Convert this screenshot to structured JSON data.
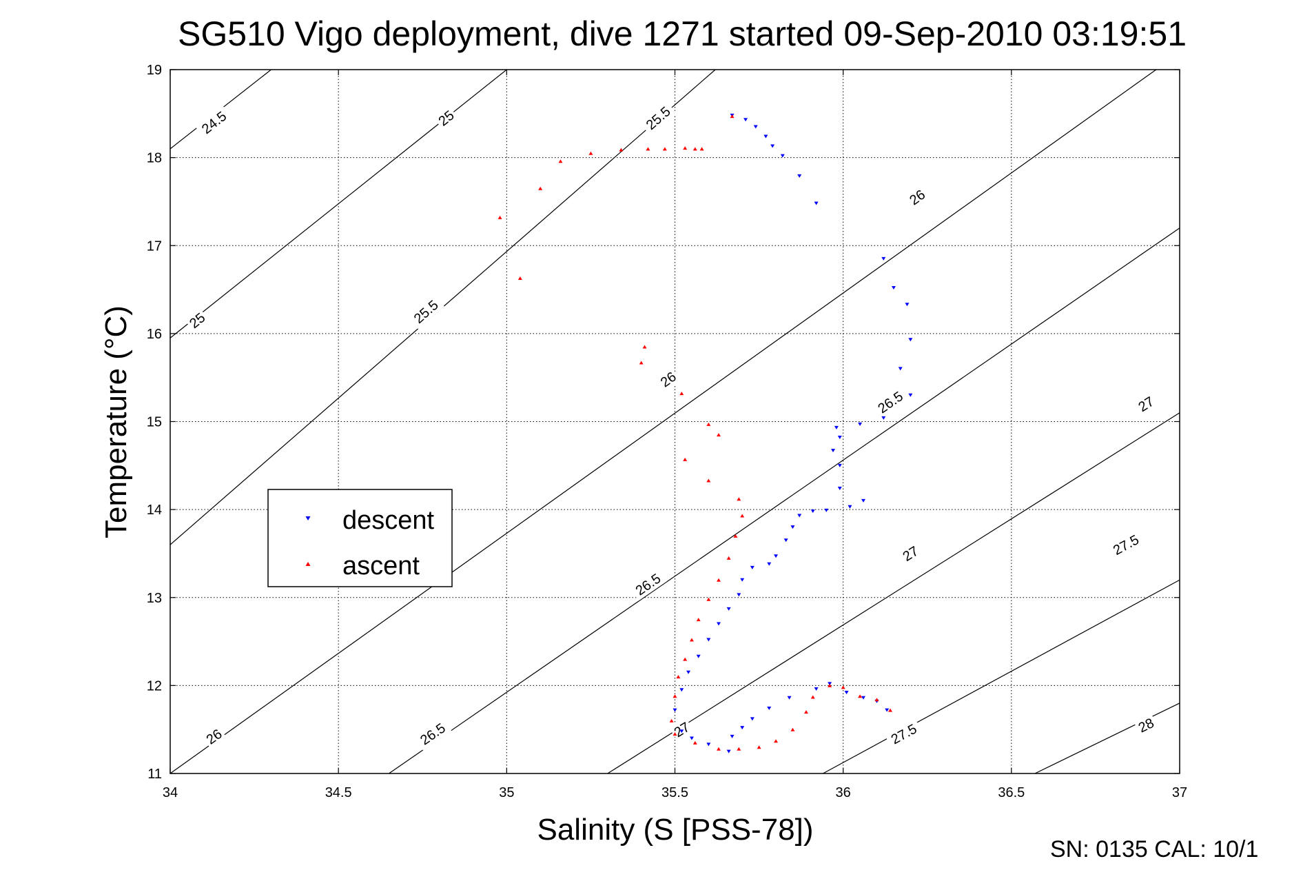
{
  "chart_data": {
    "type": "scatter",
    "title": "SG510 Vigo deployment, dive 1271 started 09-Sep-2010 03:19:51",
    "xlabel": "Salinity (S [PSS-78])",
    "ylabel": "Temperature (°C)",
    "xlim": [
      34,
      37
    ],
    "ylim": [
      11,
      19
    ],
    "xticks": [
      "34",
      "34.5",
      "35",
      "35.5",
      "36",
      "36.5",
      "37"
    ],
    "yticks": [
      "11",
      "12",
      "13",
      "14",
      "15",
      "16",
      "17",
      "18",
      "19"
    ],
    "grid": true,
    "legend_position": "left",
    "footer": "SN: 0135  CAL: 10/1",
    "colors": {
      "descent": "#0000ff",
      "ascent": "#ff0000",
      "contour": "#000000"
    },
    "density_contours": [
      {
        "label": "24.5",
        "points": [
          [
            34,
            18.1
          ],
          [
            34.3,
            19
          ]
        ],
        "label_at": [
          34.13,
          18.4
        ]
      },
      {
        "label": "25",
        "points": [
          [
            34,
            15.95
          ],
          [
            35,
            19
          ]
        ],
        "label_at": [
          34.08,
          16.15
        ]
      },
      {
        "label": "25",
        "points": [
          [
            34,
            15.95
          ],
          [
            35,
            19
          ]
        ],
        "label_at": [
          34.82,
          18.45
        ]
      },
      {
        "label": "25.5",
        "points": [
          [
            34,
            13.6
          ],
          [
            35.62,
            19
          ]
        ],
        "label_at": [
          34.76,
          16.25
        ]
      },
      {
        "label": "25.5",
        "points": [
          [
            34,
            13.6
          ],
          [
            35.62,
            19
          ]
        ],
        "label_at": [
          35.45,
          18.45
        ]
      },
      {
        "label": "26",
        "points": [
          [
            34,
            11
          ],
          [
            36.93,
            19
          ]
        ],
        "label_at": [
          34.13,
          11.42
        ]
      },
      {
        "label": "26",
        "points": [
          [
            34,
            11
          ],
          [
            36.93,
            19
          ]
        ],
        "label_at": [
          35.48,
          15.48
        ]
      },
      {
        "label": "26",
        "points": [
          [
            34,
            11
          ],
          [
            36.93,
            19
          ]
        ],
        "label_at": [
          36.22,
          17.55
        ]
      },
      {
        "label": "26.5",
        "points": [
          [
            34.65,
            11
          ],
          [
            37,
            17.2
          ]
        ],
        "label_at": [
          34.78,
          11.45
        ]
      },
      {
        "label": "26.5",
        "points": [
          [
            34.65,
            11
          ],
          [
            37,
            17.2
          ]
        ],
        "label_at": [
          35.42,
          13.15
        ]
      },
      {
        "label": "26.5",
        "points": [
          [
            34.65,
            11
          ],
          [
            37,
            17.2
          ]
        ],
        "label_at": [
          36.14,
          15.22
        ]
      },
      {
        "label": "27",
        "points": [
          [
            35.3,
            11
          ],
          [
            37,
            15.1
          ]
        ],
        "label_at": [
          35.52,
          11.5
        ]
      },
      {
        "label": "27",
        "points": [
          [
            35.3,
            11
          ],
          [
            37,
            15.1
          ]
        ],
        "label_at": [
          36.2,
          13.5
        ]
      },
      {
        "label": "27",
        "points": [
          [
            35.3,
            11
          ],
          [
            37,
            15.1
          ]
        ],
        "label_at": [
          36.9,
          15.2
        ]
      },
      {
        "label": "27.5",
        "points": [
          [
            35.94,
            11
          ],
          [
            37,
            13.2
          ]
        ],
        "label_at": [
          36.18,
          11.45
        ]
      },
      {
        "label": "27.5",
        "points": [
          [
            35.94,
            11
          ],
          [
            37,
            13.2
          ]
        ],
        "label_at": [
          36.84,
          13.6
        ]
      },
      {
        "label": "28",
        "points": [
          [
            36.57,
            11
          ],
          [
            37,
            11.8
          ]
        ],
        "label_at": [
          36.9,
          11.55
        ]
      }
    ],
    "series": [
      {
        "name": "descent",
        "marker": "triangle-down",
        "points": [
          [
            35.67,
            18.48
          ],
          [
            35.71,
            18.43
          ],
          [
            35.74,
            18.35
          ],
          [
            35.77,
            18.24
          ],
          [
            35.79,
            18.13
          ],
          [
            35.82,
            18.02
          ],
          [
            35.87,
            17.79
          ],
          [
            35.92,
            17.48
          ],
          [
            36.12,
            16.85
          ],
          [
            36.15,
            16.52
          ],
          [
            36.19,
            16.33
          ],
          [
            36.2,
            15.93
          ],
          [
            36.17,
            15.6
          ],
          [
            36.2,
            15.3
          ],
          [
            36.12,
            15.04
          ],
          [
            36.05,
            14.97
          ],
          [
            35.98,
            14.93
          ],
          [
            35.99,
            14.82
          ],
          [
            35.97,
            14.67
          ],
          [
            35.99,
            14.5
          ],
          [
            35.99,
            14.24
          ],
          [
            36.06,
            14.1
          ],
          [
            36.02,
            14.03
          ],
          [
            35.95,
            13.99
          ],
          [
            35.91,
            13.98
          ],
          [
            35.87,
            13.93
          ],
          [
            35.85,
            13.8
          ],
          [
            35.83,
            13.65
          ],
          [
            35.8,
            13.47
          ],
          [
            35.78,
            13.38
          ],
          [
            35.73,
            13.34
          ],
          [
            35.7,
            13.2
          ],
          [
            35.69,
            13.03
          ],
          [
            35.66,
            12.87
          ],
          [
            35.63,
            12.7
          ],
          [
            35.6,
            12.52
          ],
          [
            35.57,
            12.33
          ],
          [
            35.54,
            12.15
          ],
          [
            35.52,
            11.95
          ],
          [
            35.5,
            11.72
          ],
          [
            35.52,
            11.48
          ],
          [
            35.55,
            11.4
          ],
          [
            35.6,
            11.33
          ],
          [
            35.66,
            11.25
          ],
          [
            35.67,
            11.42
          ],
          [
            35.7,
            11.52
          ],
          [
            35.73,
            11.62
          ],
          [
            35.78,
            11.74
          ],
          [
            35.84,
            11.86
          ],
          [
            35.92,
            11.96
          ],
          [
            35.96,
            12.02
          ],
          [
            36.01,
            11.92
          ],
          [
            36.06,
            11.86
          ],
          [
            36.1,
            11.82
          ],
          [
            36.13,
            11.72
          ]
        ]
      },
      {
        "name": "ascent",
        "marker": "triangle-up",
        "points": [
          [
            35.67,
            18.47
          ],
          [
            35.58,
            18.1
          ],
          [
            35.56,
            18.1
          ],
          [
            35.53,
            18.11
          ],
          [
            35.47,
            18.1
          ],
          [
            35.42,
            18.1
          ],
          [
            35.34,
            18.09
          ],
          [
            35.25,
            18.05
          ],
          [
            35.16,
            17.96
          ],
          [
            35.1,
            17.65
          ],
          [
            34.98,
            17.32
          ],
          [
            35.04,
            16.63
          ],
          [
            35.41,
            15.85
          ],
          [
            35.4,
            15.67
          ],
          [
            35.52,
            15.32
          ],
          [
            35.6,
            14.97
          ],
          [
            35.63,
            14.85
          ],
          [
            35.53,
            14.57
          ],
          [
            35.6,
            14.33
          ],
          [
            35.69,
            14.12
          ],
          [
            35.7,
            13.93
          ],
          [
            35.68,
            13.7
          ],
          [
            35.66,
            13.45
          ],
          [
            35.63,
            13.2
          ],
          [
            35.6,
            12.98
          ],
          [
            35.57,
            12.75
          ],
          [
            35.55,
            12.52
          ],
          [
            35.53,
            12.3
          ],
          [
            35.51,
            12.1
          ],
          [
            35.5,
            11.88
          ],
          [
            35.49,
            11.6
          ],
          [
            35.5,
            11.45
          ],
          [
            35.56,
            11.35
          ],
          [
            35.63,
            11.28
          ],
          [
            35.69,
            11.28
          ],
          [
            35.75,
            11.3
          ],
          [
            35.8,
            11.37
          ],
          [
            35.85,
            11.5
          ],
          [
            35.89,
            11.7
          ],
          [
            35.91,
            11.87
          ],
          [
            35.96,
            12.0
          ],
          [
            36.0,
            11.98
          ],
          [
            36.05,
            11.88
          ],
          [
            36.1,
            11.84
          ],
          [
            36.14,
            11.72
          ]
        ]
      }
    ]
  }
}
